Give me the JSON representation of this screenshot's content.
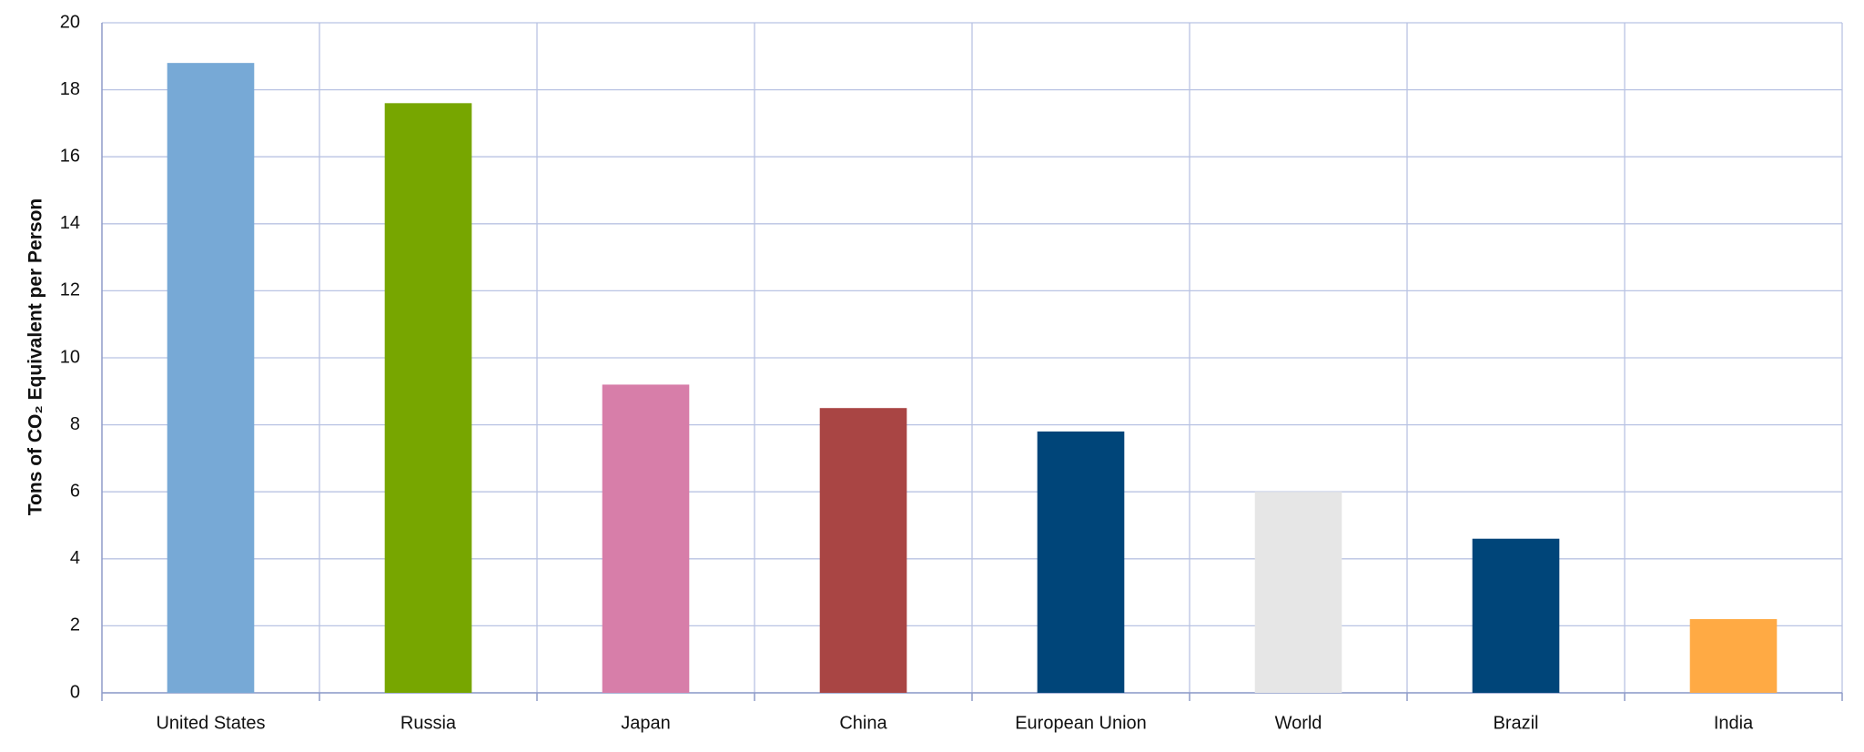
{
  "chart_data": {
    "type": "bar",
    "y_label": "Tons of CO₂ Equivalent per Person",
    "categories": [
      "United States",
      "Russia",
      "Japan",
      "China",
      "European Union",
      "World",
      "Brazil",
      "India"
    ],
    "values": [
      18.8,
      17.6,
      9.2,
      8.5,
      7.8,
      6.0,
      4.6,
      2.2
    ],
    "colors": [
      "#77a9d6",
      "#77a600",
      "#d77ea9",
      "#a94544",
      "#004579",
      "#e6e6e6",
      "#004579",
      "#ffaa44"
    ],
    "ylim": [
      0,
      20
    ],
    "yticks": [
      0,
      2,
      4,
      6,
      8,
      10,
      12,
      14,
      16,
      18,
      20
    ],
    "grid": true
  }
}
